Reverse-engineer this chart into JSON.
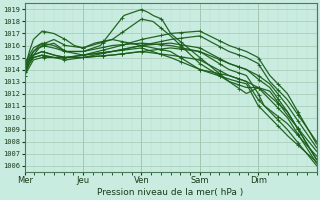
{
  "xlabel": "Pression niveau de la mer( hPa )",
  "ylim": [
    1005.5,
    1019.5
  ],
  "yticks": [
    1006,
    1007,
    1008,
    1009,
    1010,
    1011,
    1012,
    1013,
    1014,
    1015,
    1016,
    1017,
    1018,
    1019
  ],
  "day_labels": [
    "Mer",
    "Jeu",
    "Ven",
    "Sam",
    "Dim"
  ],
  "day_tick_x": [
    0,
    1,
    2,
    3,
    4
  ],
  "bg_color": "#c8ece0",
  "grid_color_major": "#b0c8ba",
  "grid_color_minor": "#c0ddd0",
  "line_color": "#1a5e1a",
  "figsize": [
    3.2,
    2.0
  ],
  "dpi": 100,
  "lines": [
    {
      "x": [
        0.0,
        0.08,
        0.15,
        0.25,
        0.35,
        0.5,
        0.7,
        1.0,
        1.3,
        1.7,
        2.0,
        2.1,
        2.2,
        2.35,
        2.5,
        3.0,
        3.5,
        3.8,
        4.0,
        4.1,
        4.5,
        5.0
      ],
      "y": [
        1013.5,
        1014.5,
        1015.2,
        1015.8,
        1016.0,
        1016.2,
        1015.5,
        1015.5,
        1016.0,
        1018.5,
        1019.0,
        1018.8,
        1018.5,
        1018.2,
        1017.0,
        1015.0,
        1013.0,
        1012.0,
        1012.5,
        1012.0,
        1010.0,
        1006.2
      ]
    },
    {
      "x": [
        0.0,
        0.08,
        0.15,
        0.25,
        0.5,
        0.7,
        1.0,
        1.5,
        2.0,
        2.2,
        2.5,
        3.0,
        3.5,
        3.8,
        4.0,
        4.1,
        4.5,
        5.0
      ],
      "y": [
        1013.8,
        1014.8,
        1015.5,
        1016.0,
        1016.5,
        1016.0,
        1015.8,
        1016.5,
        1018.2,
        1018.0,
        1016.8,
        1014.5,
        1013.0,
        1012.5,
        1012.5,
        1012.2,
        1010.5,
        1006.5
      ]
    },
    {
      "x": [
        0.0,
        0.08,
        0.15,
        0.3,
        0.5,
        0.7,
        0.85,
        1.0,
        1.2,
        1.5,
        2.0,
        2.5,
        3.0,
        3.5,
        3.8,
        4.0,
        4.1,
        4.5,
        5.0
      ],
      "y": [
        1014.0,
        1015.5,
        1016.5,
        1017.2,
        1017.0,
        1016.5,
        1016.0,
        1015.8,
        1016.2,
        1016.5,
        1016.0,
        1015.5,
        1014.0,
        1013.5,
        1013.0,
        1011.5,
        1011.0,
        1009.5,
        1006.8
      ]
    },
    {
      "x": [
        0.0,
        0.08,
        0.15,
        0.3,
        0.5,
        0.7,
        1.0,
        1.5,
        2.0,
        2.5,
        3.0,
        3.5,
        3.8,
        4.0,
        4.1,
        4.5,
        5.0
      ],
      "y": [
        1014.2,
        1015.0,
        1015.5,
        1016.0,
        1015.8,
        1015.5,
        1015.2,
        1015.5,
        1015.8,
        1015.0,
        1014.0,
        1013.2,
        1012.8,
        1011.0,
        1010.5,
        1008.5,
        1006.3
      ]
    },
    {
      "x": [
        0.0,
        0.08,
        0.15,
        0.3,
        0.5,
        0.7,
        1.0,
        1.5,
        2.0,
        2.5,
        3.0,
        3.5,
        3.8,
        4.0,
        4.1,
        4.5,
        5.0
      ],
      "y": [
        1014.5,
        1015.2,
        1015.8,
        1016.2,
        1016.0,
        1015.5,
        1015.5,
        1016.0,
        1016.2,
        1016.0,
        1015.5,
        1014.0,
        1013.5,
        1012.0,
        1011.0,
        1009.0,
        1006.0
      ]
    },
    {
      "x": [
        0.0,
        0.08,
        0.15,
        0.3,
        0.5,
        0.7,
        1.0,
        1.5,
        2.0,
        2.5,
        3.0,
        3.5,
        3.8,
        4.0,
        4.2,
        4.5,
        5.0
      ],
      "y": [
        1013.8,
        1014.5,
        1015.0,
        1015.2,
        1015.0,
        1015.0,
        1015.0,
        1015.2,
        1015.5,
        1015.2,
        1014.8,
        1013.5,
        1013.0,
        1012.5,
        1012.2,
        1010.2,
        1007.2
      ]
    },
    {
      "x": [
        0.0,
        0.08,
        0.15,
        0.3,
        0.5,
        0.7,
        1.0,
        1.5,
        2.0,
        2.5,
        3.0,
        3.5,
        3.8,
        4.0,
        4.2,
        4.5,
        5.0
      ],
      "y": [
        1014.2,
        1014.8,
        1015.2,
        1015.5,
        1015.2,
        1015.0,
        1015.0,
        1015.5,
        1016.0,
        1016.2,
        1015.8,
        1014.5,
        1014.0,
        1013.5,
        1012.8,
        1011.0,
        1007.5
      ]
    },
    {
      "x": [
        0.0,
        0.08,
        0.15,
        0.3,
        0.5,
        0.7,
        1.0,
        1.5,
        2.0,
        2.5,
        3.0,
        3.5,
        3.8,
        4.0,
        4.2,
        4.5,
        5.0
      ],
      "y": [
        1014.0,
        1014.5,
        1015.0,
        1015.2,
        1015.0,
        1015.0,
        1015.2,
        1015.5,
        1016.0,
        1016.5,
        1016.8,
        1015.5,
        1015.0,
        1014.5,
        1013.0,
        1011.5,
        1008.0
      ]
    },
    {
      "x": [
        0.0,
        0.08,
        0.15,
        0.3,
        0.5,
        0.7,
        1.0,
        1.5,
        2.0,
        2.5,
        3.0,
        3.5,
        3.8,
        4.0,
        4.2,
        4.5,
        5.0
      ],
      "y": [
        1014.3,
        1014.8,
        1015.2,
        1015.5,
        1015.2,
        1015.0,
        1015.2,
        1015.8,
        1016.5,
        1017.0,
        1017.2,
        1016.0,
        1015.5,
        1015.0,
        1013.5,
        1012.0,
        1007.8
      ]
    },
    {
      "x": [
        0.0,
        0.08,
        0.15,
        0.3,
        0.5,
        0.7,
        1.0,
        1.5,
        2.0,
        2.5,
        3.0,
        3.5,
        3.8,
        4.0,
        4.2,
        4.5,
        5.0
      ],
      "y": [
        1013.5,
        1014.2,
        1014.8,
        1015.0,
        1015.0,
        1014.8,
        1015.0,
        1015.2,
        1015.5,
        1015.8,
        1015.5,
        1014.5,
        1014.0,
        1013.2,
        1012.5,
        1010.5,
        1006.5
      ]
    }
  ]
}
